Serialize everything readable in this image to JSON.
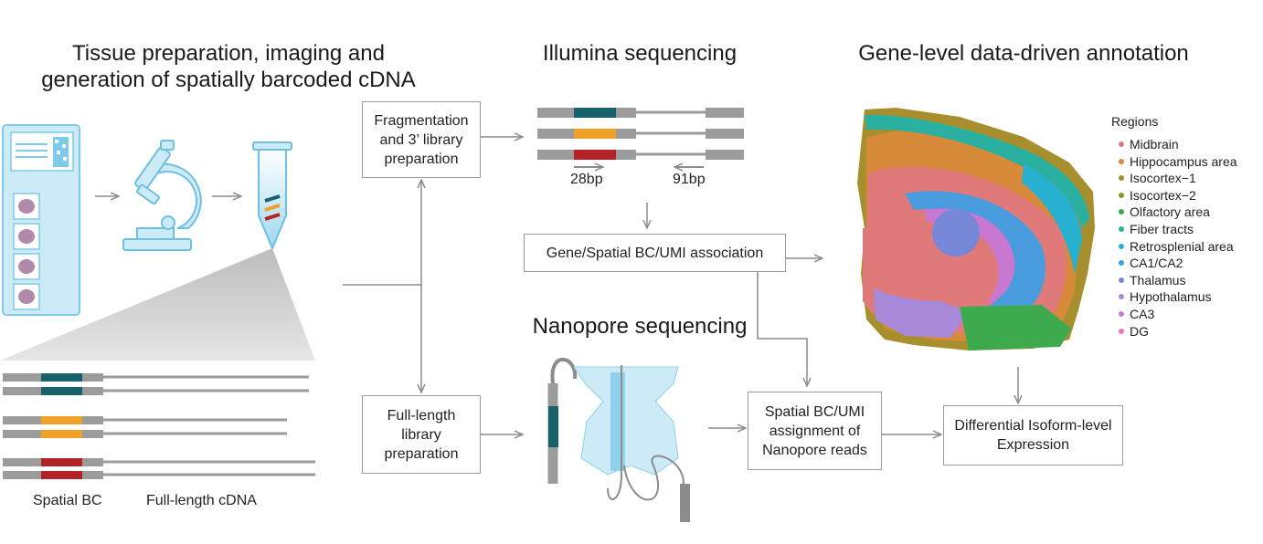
{
  "headers": {
    "tissue_line1": "Tissue preparation, imaging  and",
    "tissue_line2": "generation of spatially barcoded cDNA",
    "illumina": "Illumina sequencing",
    "annotation": "Gene-level data-driven annotation",
    "nanopore": "Nanopore sequencing"
  },
  "boxes": {
    "fragmentation": [
      "Fragmentation",
      "and 3’ library",
      "preparation"
    ],
    "full_length": [
      "Full-length",
      "library",
      "preparation"
    ],
    "association": "Gene/Spatial BC/UMI association",
    "assignment": [
      "Spatial BC/UMI",
      "assignment of",
      "Nanopore reads"
    ],
    "differential": [
      "Differential Isoform-level",
      "Expression"
    ]
  },
  "read_labels": {
    "read1": "28bp",
    "read2": "91bp"
  },
  "bottom_labels": {
    "spatial_bc": "Spatial BC",
    "full_length_cdna": "Full-length cDNA"
  },
  "legend": {
    "title": "Regions",
    "items": [
      {
        "label": "Midbrain",
        "color": "#e07a7a"
      },
      {
        "label": "Hippocampus area",
        "color": "#d68a3a"
      },
      {
        "label": "Isocortex−1",
        "color": "#a88f2e"
      },
      {
        "label": "Isocortex−2",
        "color": "#8a9a2a"
      },
      {
        "label": "Olfactory area",
        "color": "#3daa4e"
      },
      {
        "label": "Fiber tracts",
        "color": "#2ab0a0"
      },
      {
        "label": "Retrosplenial area",
        "color": "#28b0d0"
      },
      {
        "label": "CA1/CA2",
        "color": "#38a0e8"
      },
      {
        "label": "Thalamus",
        "color": "#7888d8"
      },
      {
        "label": "Hypothalamus",
        "color": "#a888d8"
      },
      {
        "label": "CA3",
        "color": "#c878d0"
      },
      {
        "label": "DG",
        "color": "#e878b8"
      }
    ]
  },
  "colors": {
    "barcode_teal": "#17616d",
    "barcode_orange": "#f0a228",
    "barcode_red": "#b32226",
    "icon_blue": "#7ccbe8",
    "icon_light": "#cdeaf7",
    "arrow_gray": "#8c8c8c"
  }
}
